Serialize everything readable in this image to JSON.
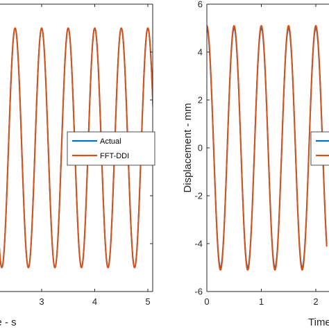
{
  "chart_data": [
    {
      "type": "line",
      "xlabel": "Time - s",
      "ylabel": "",
      "xlim": [
        1.0,
        5.1
      ],
      "ylim": [
        -6,
        6
      ],
      "xticks": [
        3,
        4,
        5
      ],
      "yticks": [],
      "grid": false,
      "legend_position": "center-right",
      "signal": {
        "amplitude": 5,
        "frequency_hz": 2,
        "phase": 0
      },
      "series": [
        {
          "name": "Actual",
          "color": "#0072BD",
          "amplitude": 5,
          "frequency_hz": 2
        },
        {
          "name": "FFT-DDI",
          "color": "#D95319",
          "amplitude": 5,
          "frequency_hz": 2
        }
      ]
    },
    {
      "type": "line",
      "xlabel": "Time - s",
      "ylabel": "Displacement - mm",
      "xlim": [
        0,
        2.2
      ],
      "ylim": [
        -6,
        6
      ],
      "xticks": [
        0,
        1,
        2
      ],
      "yticks": [
        -6,
        -4,
        -2,
        0,
        2,
        4,
        6
      ],
      "grid": false,
      "legend_position": "center-right",
      "series": [
        {
          "name": "Actual",
          "color": "#0072BD",
          "amplitude": 5,
          "frequency_hz": 2
        },
        {
          "name": "FFT-DDI",
          "color": "#D95319",
          "amplitude": 5.1,
          "frequency_hz": 2
        }
      ]
    }
  ]
}
